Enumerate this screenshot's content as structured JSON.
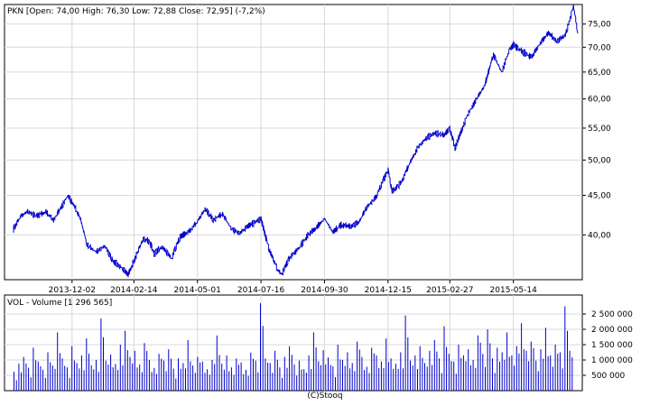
{
  "chart_data": [
    {
      "type": "line",
      "header": "PKN [Open: 74,00  High: 76,30  Low: 72,88  Close: 72,95] (-7,2%)",
      "x_tick_labels": [
        "2013-12-02",
        "2014-02-14",
        "2014-05-01",
        "2014-07-16",
        "2014-09-30",
        "2014-12-15",
        "2015-02-27",
        "2015-05-14"
      ],
      "y_tick_labels": [
        "75,00",
        "70,00",
        "65,00",
        "60,00",
        "55,00",
        "50,00",
        "45,00",
        "40,00"
      ],
      "y_ticks": [
        75,
        70,
        65,
        60,
        55,
        50,
        45,
        40
      ],
      "y_scale": "log",
      "ylim": [
        35.0,
        79.5
      ],
      "date_range": [
        "2013-09-23",
        "2015-07-30"
      ],
      "grid": true,
      "color": "#0000cc",
      "series": [
        {
          "values": [
            [
              "2013-09-23",
              40.7
            ],
            [
              "2013-10-01",
              42.2
            ],
            [
              "2013-10-10",
              42.9
            ],
            [
              "2013-10-20",
              42.3
            ],
            [
              "2013-11-01",
              42.8
            ],
            [
              "2013-11-10",
              41.8
            ],
            [
              "2013-11-20",
              43.6
            ],
            [
              "2013-11-27",
              45.0
            ],
            [
              "2013-12-05",
              43.5
            ],
            [
              "2013-12-12",
              42.0
            ],
            [
              "2013-12-20",
              38.8
            ],
            [
              "2013-12-31",
              38.0
            ],
            [
              "2014-01-10",
              38.7
            ],
            [
              "2014-01-20",
              37.0
            ],
            [
              "2014-01-31",
              36.2
            ],
            [
              "2014-02-07",
              35.5
            ],
            [
              "2014-02-14",
              37.0
            ],
            [
              "2014-02-25",
              39.5
            ],
            [
              "2014-03-05",
              39.2
            ],
            [
              "2014-03-10",
              37.8
            ],
            [
              "2014-03-20",
              38.6
            ],
            [
              "2014-03-31",
              37.3
            ],
            [
              "2014-04-10",
              39.7
            ],
            [
              "2014-04-22",
              40.5
            ],
            [
              "2014-05-01",
              41.6
            ],
            [
              "2014-05-10",
              43.2
            ],
            [
              "2014-05-20",
              41.8
            ],
            [
              "2014-05-31",
              42.6
            ],
            [
              "2014-06-10",
              40.8
            ],
            [
              "2014-06-20",
              40.2
            ],
            [
              "2014-06-30",
              41.0
            ],
            [
              "2014-07-10",
              41.6
            ],
            [
              "2014-07-16",
              42.0
            ],
            [
              "2014-07-25",
              38.5
            ],
            [
              "2014-08-05",
              36.0
            ],
            [
              "2014-08-10",
              35.6
            ],
            [
              "2014-08-20",
              37.5
            ],
            [
              "2014-08-31",
              38.5
            ],
            [
              "2014-09-10",
              40.0
            ],
            [
              "2014-09-20",
              40.8
            ],
            [
              "2014-09-30",
              42.0
            ],
            [
              "2014-10-10",
              40.3
            ],
            [
              "2014-10-20",
              41.2
            ],
            [
              "2014-10-31",
              41.0
            ],
            [
              "2014-11-10",
              41.5
            ],
            [
              "2014-11-20",
              43.5
            ],
            [
              "2014-12-01",
              44.8
            ],
            [
              "2014-12-10",
              47.3
            ],
            [
              "2014-12-15",
              48.5
            ],
            [
              "2014-12-20",
              45.5
            ],
            [
              "2014-12-31",
              46.8
            ],
            [
              "2015-01-10",
              49.5
            ],
            [
              "2015-01-20",
              52.0
            ],
            [
              "2015-01-31",
              53.5
            ],
            [
              "2015-02-10",
              54.2
            ],
            [
              "2015-02-20",
              53.8
            ],
            [
              "2015-02-27",
              55.0
            ],
            [
              "2015-03-05",
              51.8
            ],
            [
              "2015-03-10",
              53.5
            ],
            [
              "2015-03-20",
              57.2
            ],
            [
              "2015-03-31",
              60.0
            ],
            [
              "2015-04-10",
              62.5
            ],
            [
              "2015-04-20",
              68.5
            ],
            [
              "2015-04-30",
              65.0
            ],
            [
              "2015-05-10",
              69.8
            ],
            [
              "2015-05-14",
              70.5
            ],
            [
              "2015-05-25",
              69.0
            ],
            [
              "2015-06-05",
              68.0
            ],
            [
              "2015-06-15",
              70.8
            ],
            [
              "2015-06-25",
              73.0
            ],
            [
              "2015-07-05",
              71.2
            ],
            [
              "2015-07-15",
              72.5
            ],
            [
              "2015-07-25",
              79.0
            ],
            [
              "2015-07-30",
              72.95
            ]
          ]
        }
      ]
    },
    {
      "type": "bar",
      "header": "VOL - Volume [1 296 565]",
      "y_tick_labels": [
        "2 500 000",
        "2 000 000",
        "1 500 000",
        "1 000 000",
        "500 000"
      ],
      "y_ticks": [
        2500000,
        2000000,
        1500000,
        1000000,
        500000
      ],
      "ylim": [
        0,
        3000000
      ],
      "grid": true,
      "color": "#0000cc",
      "series": [
        {
          "values": [
            620000,
            880000,
            1100000,
            750000,
            1400000,
            950000,
            680000,
            1250000,
            820000,
            1900000,
            1050000,
            760000,
            1450000,
            900000,
            1150000,
            1700000,
            830000,
            1000000,
            2350000,
            980000,
            1180000,
            870000,
            1500000,
            1950000,
            1100000,
            1300000,
            850000,
            1550000,
            1000000,
            740000,
            1200000,
            980000,
            1350000,
            720000,
            1050000,
            900000,
            1650000,
            820000,
            1100000,
            950000,
            700000,
            1000000,
            1800000,
            880000,
            1150000,
            760000,
            1050000,
            920000,
            680000,
            1240000,
            980000,
            2850000,
            1050000,
            900000,
            1300000,
            760000,
            1100000,
            1450000,
            850000,
            980000,
            700000,
            1150000,
            1900000,
            960000,
            1320000,
            1080000,
            800000,
            1500000,
            1000000,
            1250000,
            900000,
            1600000,
            1100000,
            780000,
            1400000,
            1150000,
            950000,
            1700000,
            1050000,
            880000,
            1250000,
            2450000,
            980000,
            1150000,
            1450000,
            900000,
            1300000,
            1650000,
            1050000,
            2100000,
            1200000,
            950000,
            1500000,
            1150000,
            1350000,
            1000000,
            1800000,
            1200000,
            2000000,
            1050000,
            1400000,
            1250000,
            1900000,
            1150000,
            1450000,
            2200000,
            1300000,
            1600000,
            980000,
            1350000,
            2050000,
            1150000,
            1500000,
            1250000,
            2750000,
            1300000
          ]
        }
      ]
    }
  ],
  "footer": "(C)Stooq"
}
